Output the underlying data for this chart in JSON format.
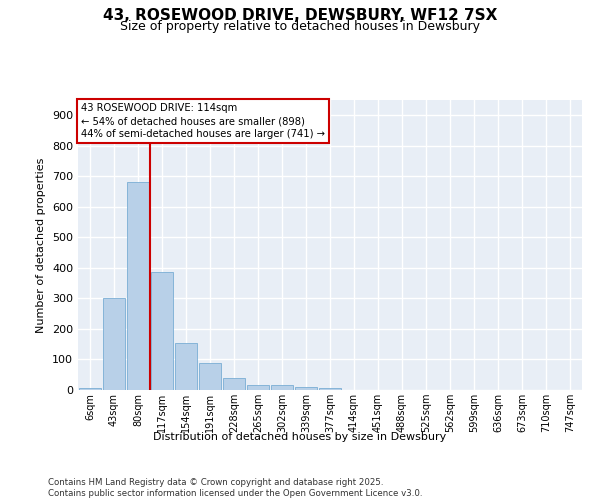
{
  "title_line1": "43, ROSEWOOD DRIVE, DEWSBURY, WF12 7SX",
  "title_line2": "Size of property relative to detached houses in Dewsbury",
  "xlabel": "Distribution of detached houses by size in Dewsbury",
  "ylabel": "Number of detached properties",
  "categories": [
    "6sqm",
    "43sqm",
    "80sqm",
    "117sqm",
    "154sqm",
    "191sqm",
    "228sqm",
    "265sqm",
    "302sqm",
    "339sqm",
    "377sqm",
    "414sqm",
    "451sqm",
    "488sqm",
    "525sqm",
    "562sqm",
    "599sqm",
    "636sqm",
    "673sqm",
    "710sqm",
    "747sqm"
  ],
  "values": [
    8,
    300,
    680,
    385,
    155,
    90,
    40,
    15,
    15,
    10,
    8,
    0,
    0,
    0,
    0,
    0,
    0,
    0,
    0,
    0,
    0
  ],
  "bar_color": "#b8d0e8",
  "bar_edge_color": "#7aadd4",
  "vline_x": 2.5,
  "vline_color": "#cc0000",
  "annotation_text": "43 ROSEWOOD DRIVE: 114sqm\n← 54% of detached houses are smaller (898)\n44% of semi-detached houses are larger (741) →",
  "ylim": [
    0,
    950
  ],
  "yticks": [
    0,
    100,
    200,
    300,
    400,
    500,
    600,
    700,
    800,
    900
  ],
  "footer": "Contains HM Land Registry data © Crown copyright and database right 2025.\nContains public sector information licensed under the Open Government Licence v3.0.",
  "bg_color": "#e8eef6",
  "grid_color": "#ffffff",
  "fig_bg": "#ffffff"
}
